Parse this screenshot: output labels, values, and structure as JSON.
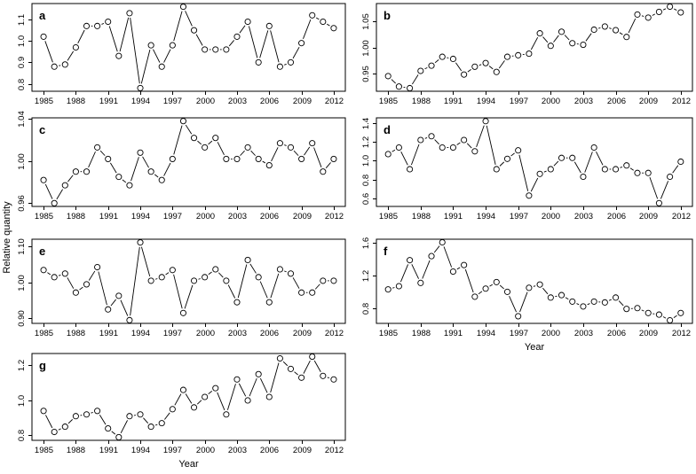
{
  "figure": {
    "y_axis_label": "Relative quantity",
    "x_axis_label": "Year",
    "ink_color": "#000000",
    "background_color": "#ffffff",
    "marker": "open-circle"
  },
  "chart_data": {
    "type": "line",
    "title": "",
    "xlabel": "Year",
    "ylabel": "Relative quantity",
    "grid": false,
    "legend": "none",
    "marker_style": "open-circle",
    "line_style": "segments-with-gaps-at-markers",
    "x": [
      1985,
      1986,
      1987,
      1988,
      1989,
      1990,
      1991,
      1992,
      1993,
      1994,
      1995,
      1996,
      1997,
      1998,
      1999,
      2000,
      2001,
      2002,
      2003,
      2004,
      2005,
      2006,
      2007,
      2008,
      2009,
      2010,
      2011,
      2012
    ],
    "xlim": [
      1983.92,
      2013.08
    ],
    "x_tick_labels": [
      "1985",
      "1988",
      "1991",
      "1994",
      "1997",
      "2000",
      "2003",
      "2006",
      "2009",
      "2012"
    ],
    "panels": [
      {
        "id": "a",
        "letter": "a",
        "x_label": "",
        "ylim": [
          0.765,
          1.175
        ],
        "y_ticks": [
          0.8,
          0.9,
          1.0,
          1.1
        ],
        "y_tick_labels": [
          "0.8",
          "0.9",
          "1.0",
          "1.1"
        ],
        "values": [
          1.02,
          0.88,
          0.89,
          0.97,
          1.07,
          1.07,
          1.09,
          0.93,
          1.13,
          0.78,
          0.98,
          0.88,
          0.98,
          1.16,
          1.05,
          0.96,
          0.96,
          0.96,
          1.02,
          1.09,
          0.9,
          1.07,
          0.88,
          0.9,
          0.99,
          1.12,
          1.09,
          1.06
        ]
      },
      {
        "id": "b",
        "letter": "b",
        "x_label": "",
        "ylim": [
          0.916,
          1.084
        ],
        "y_ticks": [
          0.95,
          1.0,
          1.05
        ],
        "y_tick_labels": [
          "0.95",
          "1.00",
          "1.05"
        ],
        "values": [
          0.945,
          0.925,
          0.922,
          0.955,
          0.965,
          0.982,
          0.978,
          0.948,
          0.963,
          0.97,
          0.953,
          0.982,
          0.985,
          0.988,
          1.027,
          1.003,
          1.03,
          1.008,
          1.005,
          1.034,
          1.04,
          1.033,
          1.02,
          1.063,
          1.057,
          1.068,
          1.078,
          1.067
        ]
      },
      {
        "id": "c",
        "letter": "c",
        "x_label": "",
        "ylim": [
          0.9569,
          1.0411
        ],
        "y_ticks": [
          0.96,
          1.0,
          1.04
        ],
        "y_tick_labels": [
          "0.96",
          "1.00",
          "1.04"
        ],
        "values": [
          0.982,
          0.96,
          0.977,
          0.99,
          0.99,
          1.013,
          1.002,
          0.985,
          0.977,
          1.008,
          0.99,
          0.982,
          1.002,
          1.038,
          1.022,
          1.013,
          1.022,
          1.002,
          1.002,
          1.013,
          1.002,
          0.996,
          1.017,
          1.013,
          1.002,
          1.017,
          0.99,
          1.002
        ]
      },
      {
        "id": "d",
        "letter": "d",
        "x_label": "",
        "ylim": [
          0.515,
          1.455
        ],
        "y_ticks": [
          0.6,
          0.8,
          1.0,
          1.2,
          1.4
        ],
        "y_tick_labels": [
          "0.6",
          "0.8",
          "1.0",
          "1.2",
          "1.4"
        ],
        "values": [
          1.07,
          1.14,
          0.91,
          1.22,
          1.26,
          1.14,
          1.14,
          1.22,
          1.1,
          1.42,
          0.91,
          1.02,
          1.11,
          0.63,
          0.86,
          0.91,
          1.03,
          1.03,
          0.83,
          1.14,
          0.91,
          0.91,
          0.95,
          0.87,
          0.87,
          0.55,
          0.83,
          0.99
        ]
      },
      {
        "id": "e",
        "letter": "e",
        "x_label": "",
        "ylim": [
          0.886,
          1.121
        ],
        "y_ticks": [
          0.9,
          1.0,
          1.1
        ],
        "y_tick_labels": [
          "0.90",
          "1.00",
          "1.10"
        ],
        "values": [
          1.035,
          1.015,
          1.025,
          0.972,
          0.995,
          1.043,
          0.925,
          0.963,
          0.895,
          1.112,
          1.005,
          1.015,
          1.035,
          0.915,
          1.005,
          1.015,
          1.037,
          1.005,
          0.945,
          1.063,
          1.015,
          0.945,
          1.037,
          1.025,
          0.972,
          0.972,
          1.005,
          1.005
        ]
      },
      {
        "id": "f",
        "letter": "f",
        "x_label": "Year",
        "ylim": [
          0.612,
          1.648
        ],
        "y_ticks": [
          0.8,
          1.2,
          1.6
        ],
        "y_tick_labels": [
          "0.8",
          "1.2",
          "1.6"
        ],
        "values": [
          1.03,
          1.07,
          1.39,
          1.11,
          1.44,
          1.61,
          1.25,
          1.33,
          0.94,
          1.04,
          1.12,
          1.0,
          0.7,
          1.05,
          1.09,
          0.93,
          0.96,
          0.88,
          0.82,
          0.88,
          0.87,
          0.93,
          0.79,
          0.8,
          0.74,
          0.72,
          0.65,
          0.74
        ]
      },
      {
        "id": "g",
        "letter": "g",
        "x_label": "Year",
        "ylim": [
          0.772,
          1.268
        ],
        "y_ticks": [
          0.8,
          1.0,
          1.2
        ],
        "y_tick_labels": [
          "0.8",
          "1.0",
          "1.2"
        ],
        "values": [
          0.94,
          0.82,
          0.85,
          0.91,
          0.92,
          0.94,
          0.84,
          0.79,
          0.91,
          0.92,
          0.85,
          0.87,
          0.95,
          1.06,
          0.96,
          1.02,
          1.07,
          0.92,
          1.12,
          1.0,
          1.15,
          1.02,
          1.24,
          1.18,
          1.13,
          1.25,
          1.14,
          1.12
        ]
      }
    ]
  }
}
